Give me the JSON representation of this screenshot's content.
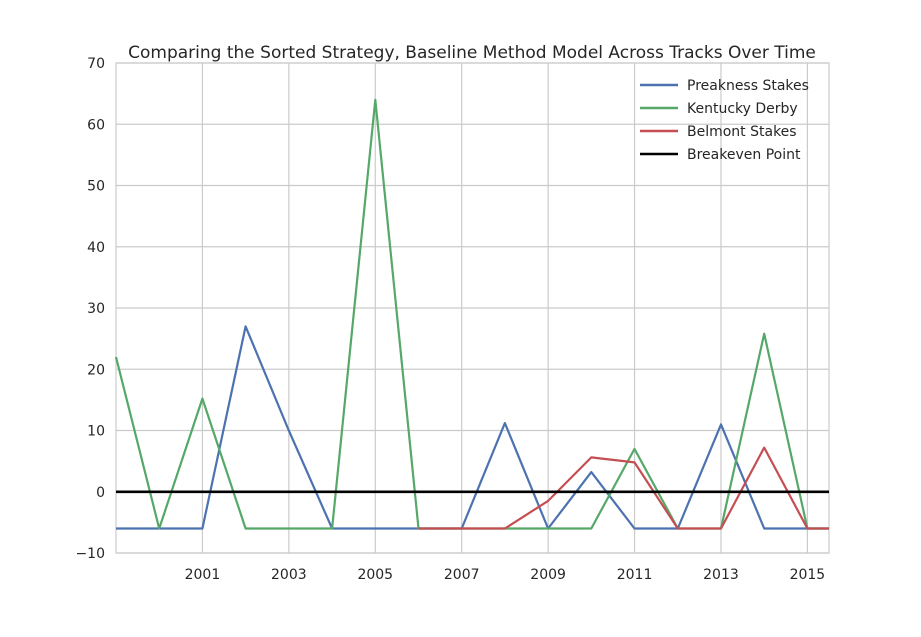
{
  "chart_data": {
    "type": "line",
    "title": "Comparing the Sorted Strategy, Baseline Method Model Across Tracks Over Time",
    "xlabel": "",
    "ylabel": "",
    "xlim": [
      1999.0,
      2015.5
    ],
    "ylim": [
      -10,
      70
    ],
    "xticks": [
      2001,
      2003,
      2005,
      2007,
      2009,
      2011,
      2013,
      2015
    ],
    "xtick_labels": [
      "2001",
      "2003",
      "2005",
      "2007",
      "2009",
      "2011",
      "2013",
      "2015"
    ],
    "yticks": [
      -10,
      0,
      10,
      20,
      30,
      40,
      50,
      60,
      70
    ],
    "ytick_labels": [
      "−10",
      "0",
      "10",
      "20",
      "30",
      "40",
      "50",
      "60",
      "70"
    ],
    "grid": true,
    "legend_position": "top-right",
    "series": [
      {
        "name": "Preakness Stakes",
        "color": "#4c72b0",
        "x": [
          1999.0,
          2000.0,
          2001.0,
          2002.0,
          2003.0,
          2004.0,
          2005.0,
          2006.0,
          2007.0,
          2008.0,
          2009.0,
          2010.0,
          2011.0,
          2012.0,
          2013.0,
          2014.0,
          2015.0,
          2015.5
        ],
        "y": [
          -6,
          -6,
          -6,
          27,
          10,
          -6,
          -6,
          -6,
          -6,
          11.2,
          -6,
          3.2,
          -6,
          -6,
          11,
          -6,
          -6,
          -6
        ]
      },
      {
        "name": "Kentucky Derby",
        "color": "#55a868",
        "x": [
          1999.0,
          2000.0,
          2001.0,
          2002.0,
          2003.0,
          2004.0,
          2005.0,
          2006.0,
          2007.0,
          2008.0,
          2009.0,
          2010.0,
          2011.0,
          2012.0,
          2013.0,
          2014.0,
          2015.0,
          2015.5
        ],
        "y": [
          22,
          -6,
          15.2,
          -6,
          -6,
          -6,
          64,
          -6,
          -6,
          -6,
          -6,
          -6,
          7,
          -6,
          -6,
          25.8,
          -6,
          -6
        ]
      },
      {
        "name": "Belmont Stakes",
        "color": "#c44e52",
        "x": [
          2006.0,
          2007.0,
          2008.0,
          2009.0,
          2010.0,
          2011.0,
          2012.0,
          2013.0,
          2014.0,
          2015.0,
          2015.5
        ],
        "y": [
          -6,
          -6,
          -6,
          -1.5,
          5.6,
          4.8,
          -6,
          -6,
          7.2,
          -6,
          -6
        ]
      },
      {
        "name": "Breakeven Point",
        "color": "#000000",
        "x": [
          1999.0,
          2015.5
        ],
        "y": [
          0,
          0
        ]
      }
    ]
  }
}
